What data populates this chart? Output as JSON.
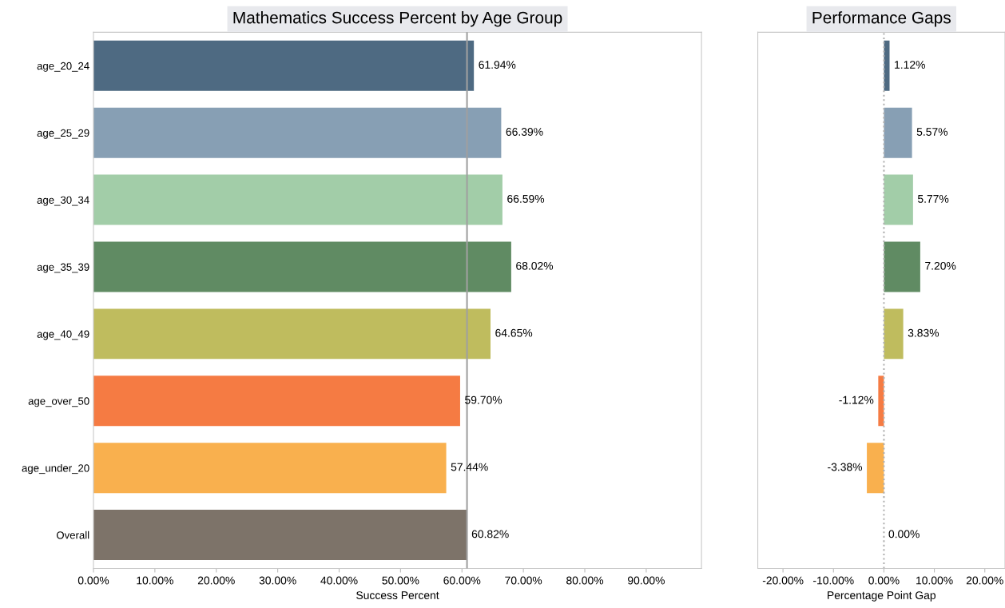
{
  "chart_data": [
    {
      "type": "bar",
      "orientation": "horizontal",
      "title": "Mathematics Success Percent by Age Group",
      "xlabel": "Success Percent",
      "categories": [
        "age_20_24",
        "age_25_29",
        "age_30_34",
        "age_35_39",
        "age_40_49",
        "age_over_50",
        "age_under_20",
        "Overall"
      ],
      "values": [
        61.94,
        66.39,
        66.59,
        68.02,
        64.65,
        59.7,
        57.44,
        60.82
      ],
      "value_labels": [
        "61.94%",
        "66.39%",
        "66.59%",
        "68.02%",
        "64.65%",
        "59.70%",
        "57.44%",
        "60.82%"
      ],
      "colors": [
        "#4e6a82",
        "#879fb4",
        "#a2cda8",
        "#608b63",
        "#bfbc5e",
        "#f57b43",
        "#f9b04e",
        "#7d7369"
      ],
      "xlim": [
        0,
        99
      ],
      "xticks": [
        {
          "value": 0,
          "label": "0.00%"
        },
        {
          "value": 10,
          "label": "10.00%"
        },
        {
          "value": 20,
          "label": "20.00%"
        },
        {
          "value": 30,
          "label": "30.00%"
        },
        {
          "value": 40,
          "label": "40.00%"
        },
        {
          "value": 50,
          "label": "50.00%"
        },
        {
          "value": 60,
          "label": "60.00%"
        },
        {
          "value": 70,
          "label": "70.00%"
        },
        {
          "value": 80,
          "label": "80.00%"
        },
        {
          "value": 90,
          "label": "90.00%"
        }
      ],
      "ref_lines": [
        {
          "axis": "x",
          "value": 60.82,
          "color": "#a0a0a0",
          "line_style": "solid"
        }
      ],
      "grid": false,
      "legend": false
    },
    {
      "type": "bar",
      "orientation": "horizontal",
      "title": "Performance Gaps",
      "xlabel": "Percentage Point Gap",
      "categories": [
        null,
        null,
        null,
        null,
        null,
        null,
        null,
        null
      ],
      "values": [
        1.12,
        5.57,
        5.77,
        7.2,
        3.83,
        -1.12,
        -3.38,
        0.0
      ],
      "value_labels": [
        "1.12%",
        "5.57%",
        "5.77%",
        "7.20%",
        "3.83%",
        "-1.12%",
        "-3.38%",
        "0.00%"
      ],
      "colors": [
        "#4e6a82",
        "#879fb4",
        "#a2cda8",
        "#608b63",
        "#bfbc5e",
        "#f57b43",
        "#f9b04e",
        "#7d7369"
      ],
      "xlim": [
        -25,
        24
      ],
      "xticks": [
        {
          "value": -20,
          "label": "-20.00%"
        },
        {
          "value": -10,
          "label": "-10.00%"
        },
        {
          "value": 0,
          "label": "0.00%"
        },
        {
          "value": 10,
          "label": "10.00%"
        },
        {
          "value": 20,
          "label": "20.00%"
        }
      ],
      "ref_lines": [
        {
          "axis": "x",
          "value": 0,
          "color": "#b0b0b0",
          "line_style": "dotted"
        }
      ],
      "tick_labels": "x",
      "grid": false,
      "legend": false
    }
  ]
}
